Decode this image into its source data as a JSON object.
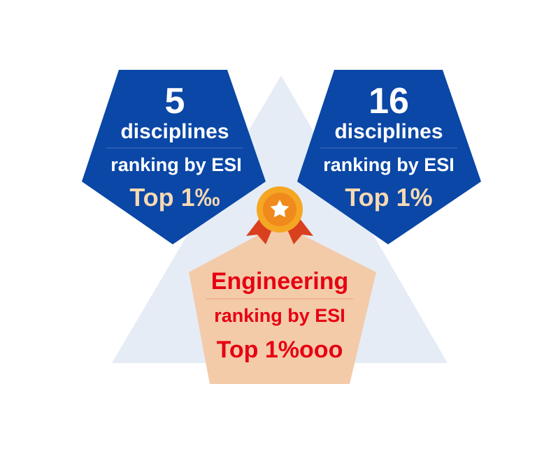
{
  "colors": {
    "background_triangle": "#e5ecf6",
    "blue_pentagon": "#0a47a6",
    "peach_pentagon": "#f3cba9",
    "white_text": "#ffffff",
    "gold_text": "#f6d9b3",
    "red_text": "#e60012",
    "medal_gold": "#f5a623",
    "medal_ribbon": "#d9401e",
    "star": "#ffffff"
  },
  "left_block": {
    "number": "5",
    "unit": "disciplines",
    "ranking": "ranking by ESI",
    "top": "Top 1‰"
  },
  "right_block": {
    "number": "16",
    "unit": "disciplines",
    "ranking": "ranking by ESI",
    "top": "Top 1%"
  },
  "center_block": {
    "title": "Engineering",
    "ranking": "ranking by ESI",
    "top": "Top 1%ooo"
  },
  "icons": {
    "medal": "medal-star-icon"
  }
}
